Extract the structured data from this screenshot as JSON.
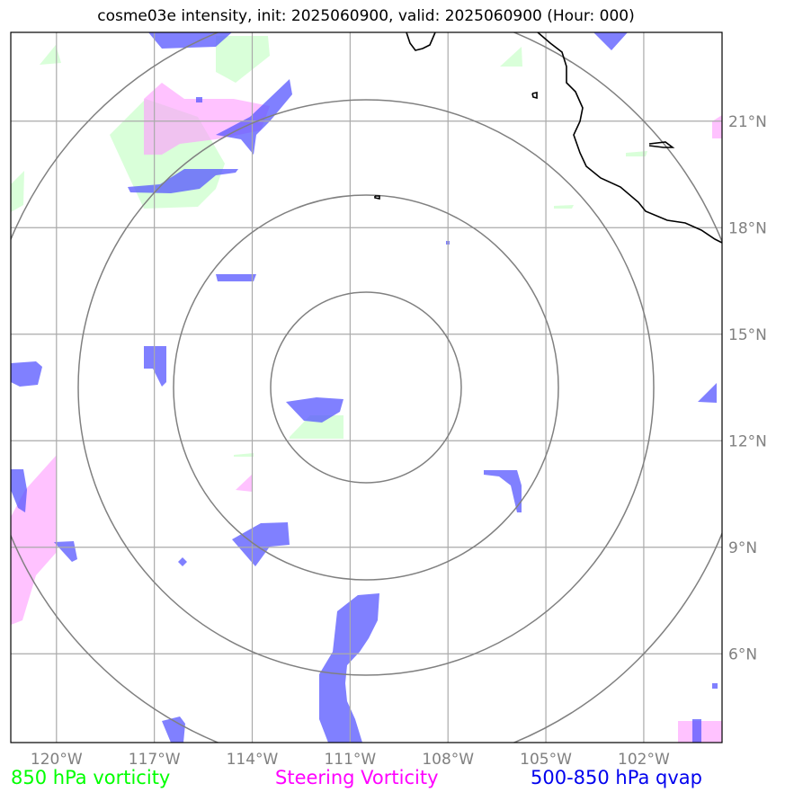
{
  "title": "cosme03e intensity, init: 2025060900, valid: 2025060900 (Hour: 000)",
  "map": {
    "lon_range": [
      -121.4,
      -99.6
    ],
    "lat_range": [
      3.5,
      23.5
    ],
    "longitude_ticks": [
      {
        "lon": -120,
        "label": "120°W"
      },
      {
        "lon": -117,
        "label": "117°W"
      },
      {
        "lon": -114,
        "label": "114°W"
      },
      {
        "lon": -111,
        "label": "111°W"
      },
      {
        "lon": -108,
        "label": "108°W"
      },
      {
        "lon": -105,
        "label": "105°W"
      },
      {
        "lon": -102,
        "label": "102°W"
      }
    ],
    "latitude_ticks": [
      {
        "lat": 21,
        "label": "21°N"
      },
      {
        "lat": 18,
        "label": "18°N"
      },
      {
        "lat": 15,
        "label": "15°N"
      },
      {
        "lat": 12,
        "label": "12°N"
      },
      {
        "lat": 9,
        "label": "9°N"
      },
      {
        "lat": 6,
        "label": "6°N"
      }
    ],
    "grid": true,
    "range_rings": {
      "center_lon": -111.3,
      "center_lat": 13.5,
      "count": 4
    },
    "colors": {
      "vorticity_850": "#ccffcc",
      "steering_vorticity": "#ffaaff",
      "qvap": "#6666ff",
      "coastline": "#000000",
      "grid": "#aaaaaa",
      "rings": "#808080"
    }
  },
  "legend": {
    "vorticity_850": "850 hPa vorticity",
    "steering": "Steering Vorticity",
    "qvap": "500-850 hPa qvap"
  }
}
